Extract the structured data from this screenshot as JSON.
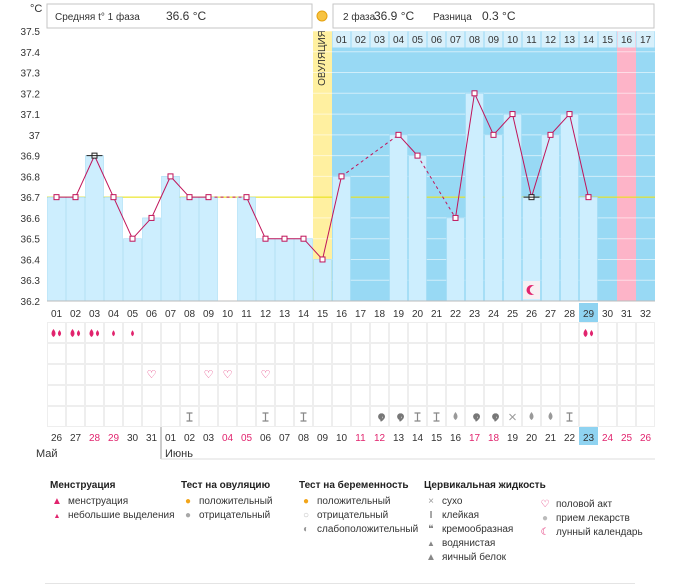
{
  "chart_data": {
    "type": "bar",
    "y_unit": "°C",
    "ylim": [
      36.2,
      37.5
    ],
    "yticks": [
      "37.5",
      "37.4",
      "37.3",
      "37.2",
      "37.1",
      "37",
      "36.9",
      "36.8",
      "36.7",
      "36.6",
      "36.5",
      "36.4",
      "36.3",
      "36.2"
    ],
    "coverline": 36.7,
    "ovulation_day_index": 14,
    "ovulation_label": "ОВУЛЯЦИЯ",
    "header": {
      "phase1_label": "Средняя t° 1 фаза",
      "phase1_value": "36.6 °C",
      "phase2_label": "2 фаза",
      "phase2_value": "36.9 °C",
      "diff_label": "Разница",
      "diff_value": "0.3 °C"
    },
    "cycle_days": [
      "01",
      "02",
      "03",
      "04",
      "05",
      "06",
      "07",
      "08",
      "09",
      "10",
      "11",
      "12",
      "13",
      "14",
      "15",
      "16",
      "17",
      "18",
      "19",
      "20",
      "21",
      "22",
      "23",
      "24",
      "25",
      "26",
      "27",
      "28",
      "29",
      "30",
      "31",
      "32"
    ],
    "phase2_days": [
      "01",
      "02",
      "03",
      "04",
      "05",
      "06",
      "07",
      "08",
      "09",
      "10",
      "11",
      "12",
      "13",
      "14",
      "15",
      "16",
      "17"
    ],
    "values": [
      36.7,
      36.7,
      36.9,
      36.7,
      36.5,
      36.6,
      36.8,
      36.7,
      36.7,
      null,
      36.7,
      36.5,
      36.5,
      36.5,
      36.4,
      36.8,
      null,
      null,
      37.0,
      36.9,
      null,
      36.6,
      37.2,
      37.0,
      37.1,
      36.7,
      37.0,
      37.1,
      36.7,
      null,
      null,
      null
    ],
    "calendar": [
      "26",
      "27",
      "28",
      "29",
      "30",
      "31",
      "01",
      "02",
      "03",
      "04",
      "05",
      "06",
      "07",
      "08",
      "09",
      "10",
      "11",
      "12",
      "13",
      "14",
      "15",
      "16",
      "17",
      "18",
      "19",
      "20",
      "21",
      "22",
      "23",
      "24",
      "25",
      "26"
    ],
    "red_calendar_indices": [
      2,
      3,
      9,
      10,
      16,
      17,
      22,
      23,
      29,
      30,
      31
    ],
    "today_index": 28,
    "months": [
      "Май",
      "Июнь"
    ],
    "menstruation": [
      2,
      2,
      2,
      1,
      1,
      0,
      0,
      0,
      0,
      0,
      0,
      0,
      0,
      0,
      0,
      0,
      0,
      0,
      0,
      0,
      0,
      0,
      0,
      0,
      0,
      0,
      0,
      0,
      2,
      0,
      0,
      0
    ],
    "intercourse_indices": [
      5,
      8,
      9,
      11
    ],
    "fluid": [
      null,
      null,
      null,
      null,
      null,
      null,
      null,
      "sticky",
      null,
      null,
      null,
      "sticky",
      null,
      "sticky",
      null,
      null,
      null,
      "creamy",
      "creamy",
      "sticky",
      "sticky",
      "watery",
      "creamy",
      "creamy",
      "dry",
      "watery",
      "watery",
      "sticky",
      null,
      null,
      null,
      null
    ],
    "moon_index": 25
  },
  "legend": {
    "menstruation": {
      "title": "Менструация",
      "items": [
        "менструация",
        "небольшие выделения"
      ]
    },
    "ovulation_test": {
      "title": "Тест на овуляцию",
      "items": [
        "положительный",
        "отрицательный"
      ]
    },
    "pregnancy_test": {
      "title": "Тест на беременность",
      "items": [
        "положительный",
        "отрицательный",
        "слабоположительный"
      ]
    },
    "fluid": {
      "title": "Цервикальная жидкость",
      "items": [
        "сухо",
        "клейкая",
        "кремообразная",
        "водянистая",
        "яичный белок"
      ]
    },
    "other": {
      "items": [
        "половой акт",
        "прием лекарств",
        "лунный календарь"
      ]
    }
  },
  "colors": {
    "bar": "#cdeefe",
    "bar_stroke": "#9ad8f3",
    "bg_phase": "#98d9f4",
    "line": "#c0145a",
    "pink": "#e1246e",
    "ovulation": "#fff0a0",
    "coverline": "#e8e000",
    "red_text": "#e1246e",
    "pink_column": "#fdb4c8"
  }
}
